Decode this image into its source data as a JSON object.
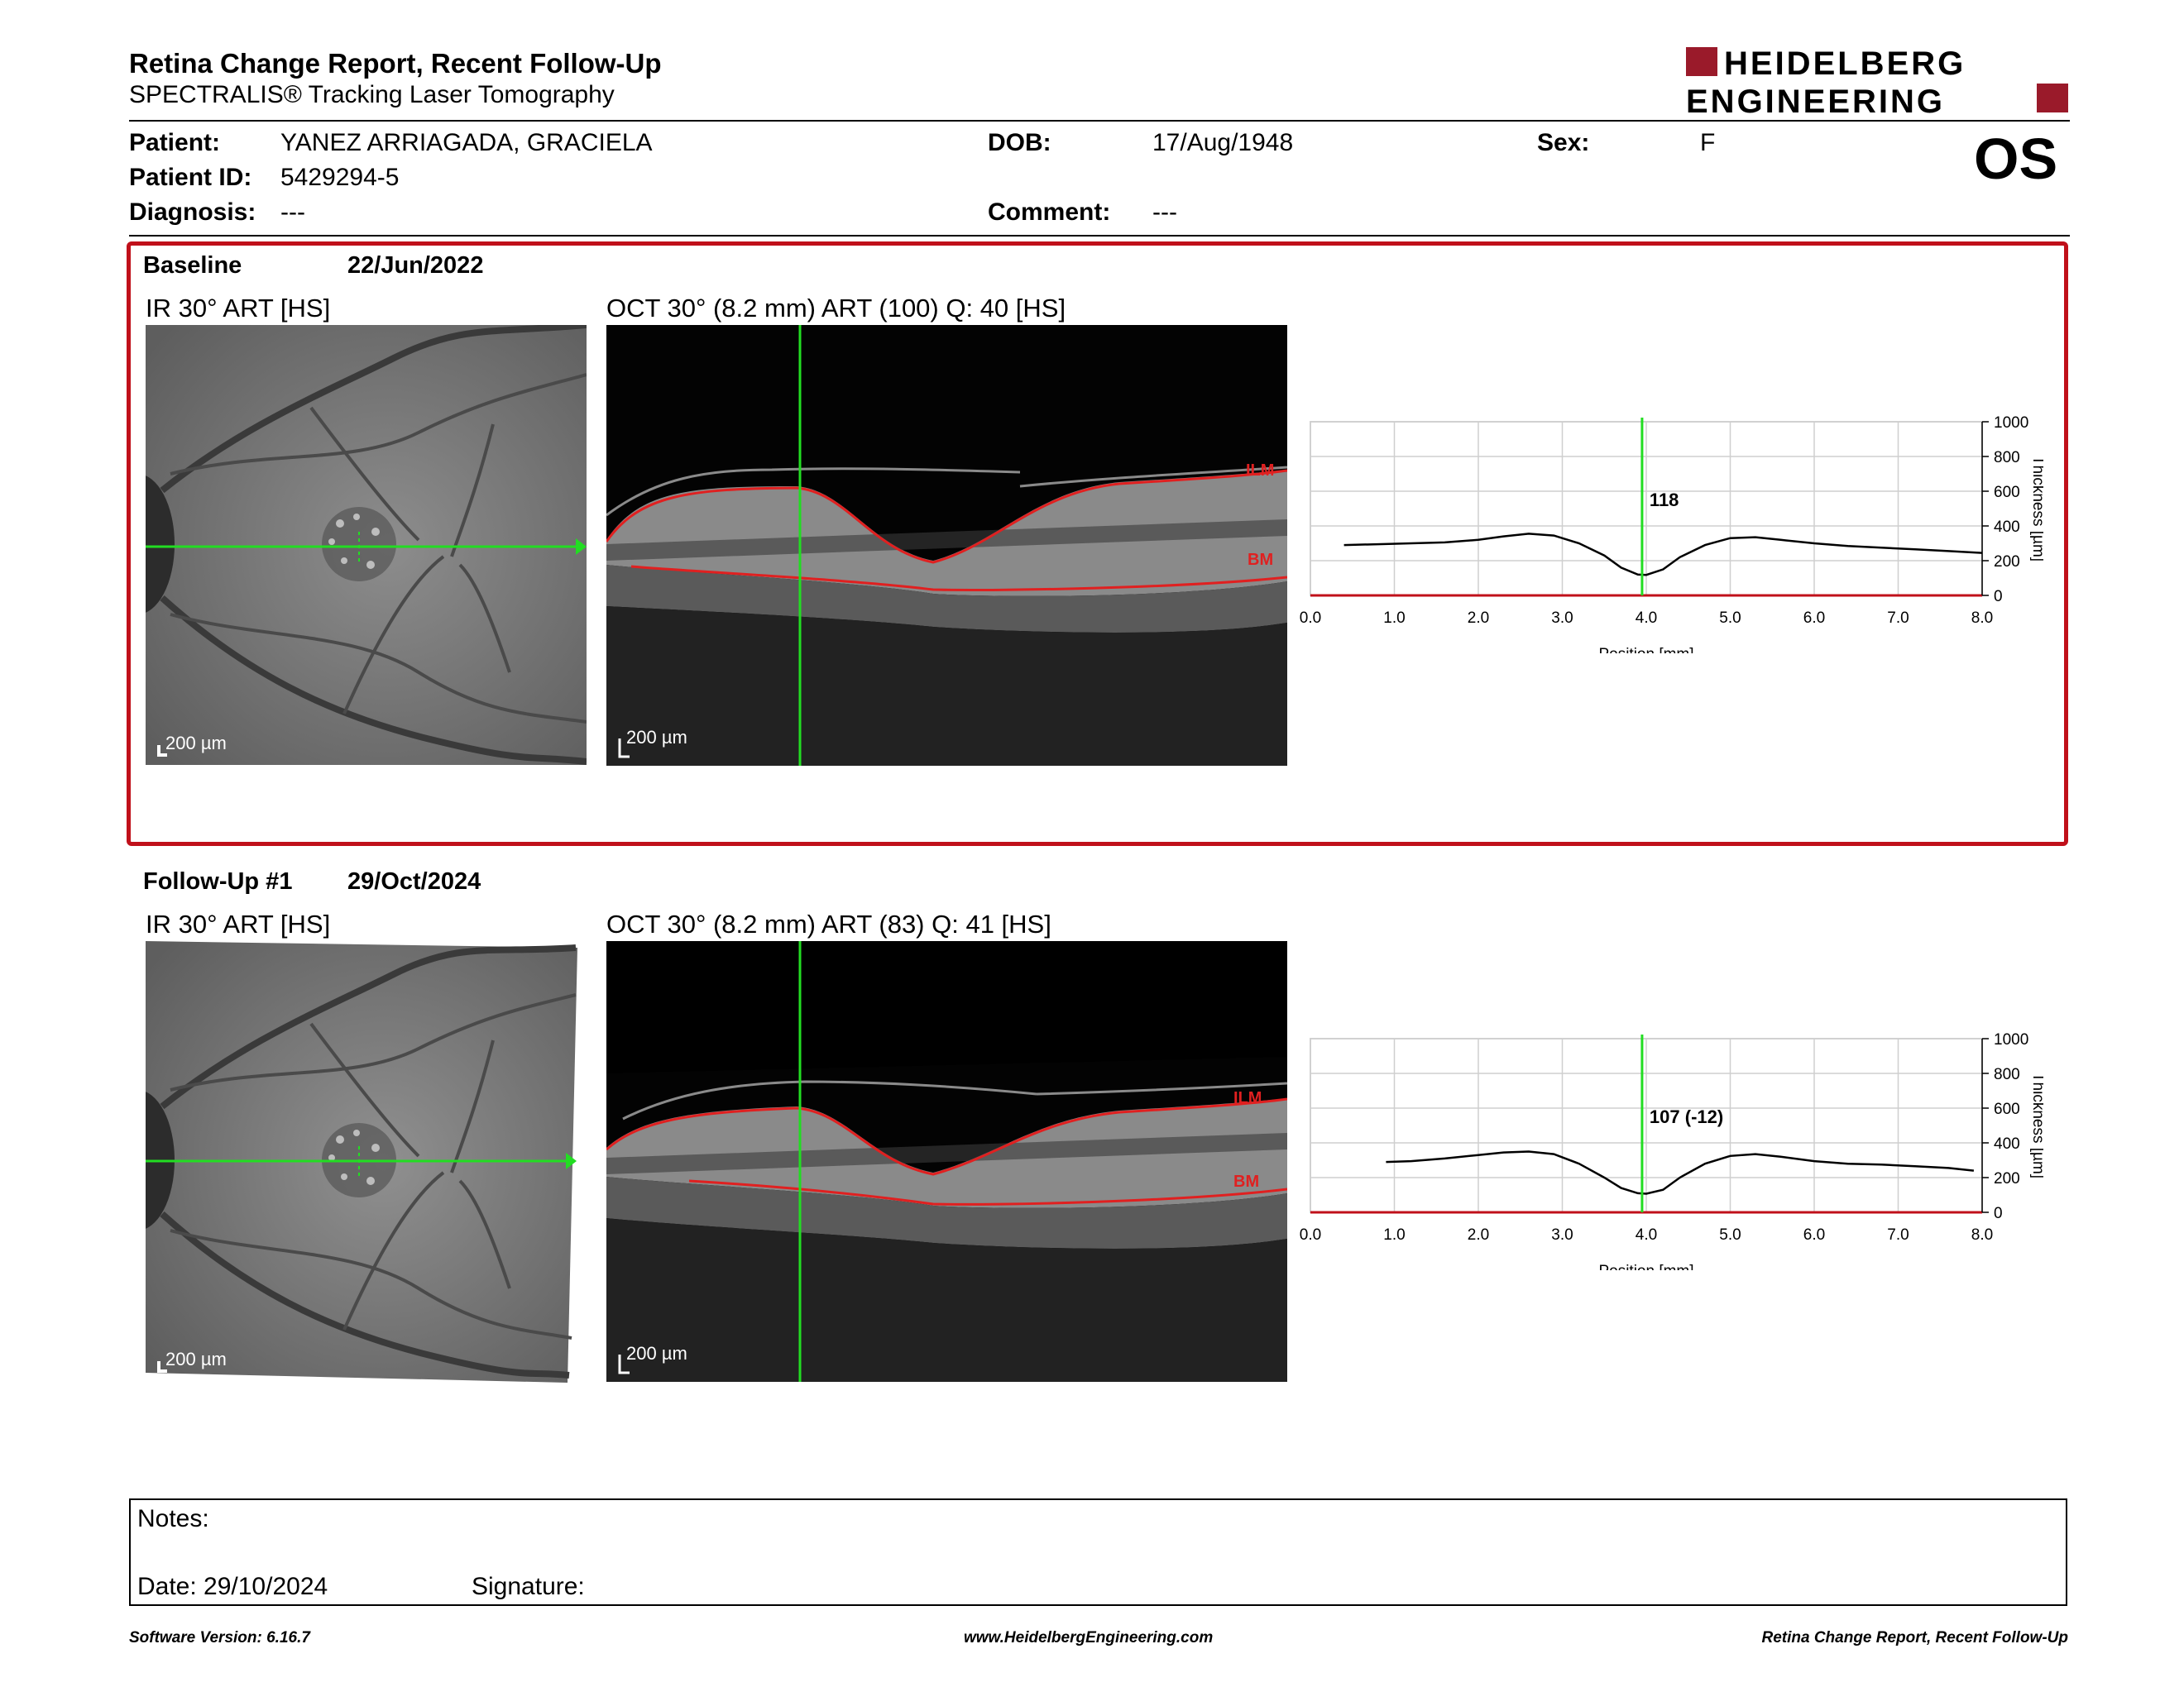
{
  "report": {
    "title": "Retina Change Report, Recent Follow-Up",
    "subtitle": "SPECTRALIS® Tracking Laser Tomography",
    "logo_line1": "HEIDELBERG",
    "logo_line2": "ENGINEERING",
    "eye": "OS"
  },
  "patient": {
    "name_label": "Patient:",
    "name": "YANEZ ARRIAGADA, GRACIELA",
    "id_label": "Patient ID:",
    "id": "5429294-5",
    "diagnosis_label": "Diagnosis:",
    "diagnosis": "---",
    "dob_label": "DOB:",
    "dob": "17/Aug/1948",
    "comment_label": "Comment:",
    "comment": "---",
    "sex_label": "Sex:",
    "sex": "F"
  },
  "baseline": {
    "label": "Baseline",
    "date": "22/Jun/2022",
    "ir_label": "IR 30° ART [HS]",
    "oct_label": "OCT 30° (8.2 mm) ART (100) Q: 40 [HS]",
    "ir_scale": "200 µm",
    "oct_scale": "200 µm",
    "ilm": "ILM",
    "bm": "BM",
    "marker_value": "118"
  },
  "followup": {
    "label": "Follow-Up #1",
    "date": "29/Oct/2024",
    "ir_label": "IR 30° ART [HS]",
    "oct_label": "OCT 30° (8.2 mm) ART (83) Q: 41 [HS]",
    "ir_scale": "200 µm",
    "oct_scale": "200 µm",
    "ilm": "ILM",
    "bm": "BM",
    "marker_value": "107 (-12)"
  },
  "notes": {
    "notes_label": "Notes:",
    "date_label": "Date: 29/10/2024",
    "signature_label": "Signature:"
  },
  "footer": {
    "software": "Software Version: 6.16.7",
    "website": "www.HeidelbergEngineering.com",
    "report_name": "Retina Change Report, Recent Follow-Up"
  },
  "colors": {
    "accent_red": "#c0101a",
    "marker_green": "#22dd22",
    "layer_red": "#e02020"
  },
  "chart_data": [
    {
      "type": "line",
      "name": "Baseline thickness profile",
      "xlabel": "Position [mm]",
      "ylabel": "Thickness [µm]",
      "xlim": [
        0,
        8
      ],
      "ylim": [
        0,
        1000
      ],
      "xticks": [
        "0.0",
        "1.0",
        "2.0",
        "3.0",
        "4.0",
        "5.0",
        "6.0",
        "7.0",
        "8.0"
      ],
      "yticks": [
        "0",
        "200",
        "400",
        "600",
        "800",
        "1000"
      ],
      "grid": true,
      "marker_x": 3.95,
      "marker_label": "118",
      "x": [
        0.4,
        0.8,
        1.2,
        1.6,
        2.0,
        2.3,
        2.6,
        2.9,
        3.2,
        3.5,
        3.7,
        3.9,
        4.0,
        4.2,
        4.4,
        4.7,
        5.0,
        5.3,
        5.6,
        6.0,
        6.4,
        6.8,
        7.2,
        7.6,
        8.0
      ],
      "y": [
        290,
        295,
        300,
        305,
        320,
        340,
        355,
        345,
        300,
        230,
        160,
        120,
        118,
        150,
        220,
        290,
        330,
        335,
        320,
        300,
        285,
        275,
        265,
        255,
        245
      ]
    },
    {
      "type": "line",
      "name": "Follow-Up thickness profile",
      "xlabel": "Position [mm]",
      "ylabel": "Thickness [µm]",
      "xlim": [
        0,
        8
      ],
      "ylim": [
        0,
        1000
      ],
      "xticks": [
        "0.0",
        "1.0",
        "2.0",
        "3.0",
        "4.0",
        "5.0",
        "6.0",
        "7.0",
        "8.0"
      ],
      "yticks": [
        "0",
        "200",
        "400",
        "600",
        "800",
        "1000"
      ],
      "grid": true,
      "marker_x": 3.95,
      "marker_label": "107 (-12)",
      "x": [
        0.9,
        1.2,
        1.6,
        2.0,
        2.3,
        2.6,
        2.9,
        3.2,
        3.5,
        3.7,
        3.9,
        4.0,
        4.2,
        4.4,
        4.7,
        5.0,
        5.3,
        5.6,
        6.0,
        6.4,
        6.8,
        7.2,
        7.6,
        7.9
      ],
      "y": [
        290,
        295,
        310,
        330,
        345,
        350,
        335,
        280,
        200,
        140,
        110,
        107,
        130,
        200,
        280,
        325,
        335,
        320,
        295,
        280,
        275,
        265,
        255,
        240
      ]
    }
  ]
}
